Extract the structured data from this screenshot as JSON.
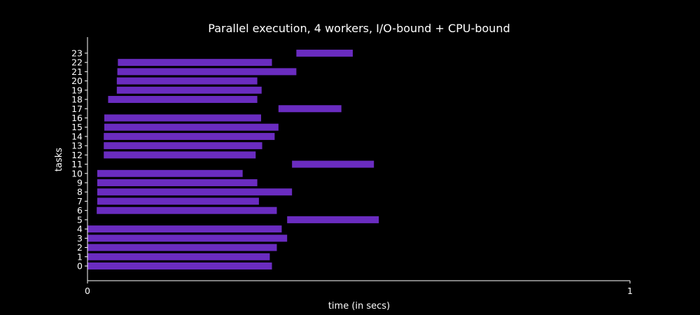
{
  "chart_data": {
    "type": "bar",
    "orientation": "horizontal",
    "title": "Parallel execution, 4 workers, I/O-bound + CPU-bound",
    "xlabel": "time (in secs)",
    "ylabel": "tasks",
    "xlim": [
      0,
      1
    ],
    "x_ticks": [
      "0",
      "1"
    ],
    "categories": [
      "0",
      "1",
      "2",
      "3",
      "4",
      "5",
      "6",
      "7",
      "8",
      "9",
      "10",
      "11",
      "12",
      "13",
      "14",
      "15",
      "16",
      "17",
      "18",
      "19",
      "20",
      "21",
      "22",
      "23"
    ],
    "bars": [
      {
        "task": "0",
        "start": 0.0,
        "end": 0.34
      },
      {
        "task": "1",
        "start": 0.0,
        "end": 0.336
      },
      {
        "task": "2",
        "start": 0.0,
        "end": 0.349
      },
      {
        "task": "3",
        "start": 0.0,
        "end": 0.368
      },
      {
        "task": "4",
        "start": 0.0,
        "end": 0.358
      },
      {
        "task": "5",
        "start": 0.368,
        "end": 0.537
      },
      {
        "task": "6",
        "start": 0.017,
        "end": 0.349
      },
      {
        "task": "7",
        "start": 0.018,
        "end": 0.316
      },
      {
        "task": "8",
        "start": 0.018,
        "end": 0.377
      },
      {
        "task": "9",
        "start": 0.018,
        "end": 0.313
      },
      {
        "task": "10",
        "start": 0.018,
        "end": 0.286
      },
      {
        "task": "11",
        "start": 0.377,
        "end": 0.528
      },
      {
        "task": "12",
        "start": 0.03,
        "end": 0.31
      },
      {
        "task": "13",
        "start": 0.03,
        "end": 0.322
      },
      {
        "task": "14",
        "start": 0.03,
        "end": 0.345
      },
      {
        "task": "15",
        "start": 0.031,
        "end": 0.352
      },
      {
        "task": "16",
        "start": 0.031,
        "end": 0.32
      },
      {
        "task": "17",
        "start": 0.352,
        "end": 0.468
      },
      {
        "task": "18",
        "start": 0.038,
        "end": 0.313
      },
      {
        "task": "19",
        "start": 0.054,
        "end": 0.321
      },
      {
        "task": "20",
        "start": 0.054,
        "end": 0.313
      },
      {
        "task": "21",
        "start": 0.055,
        "end": 0.385
      },
      {
        "task": "22",
        "start": 0.056,
        "end": 0.34
      },
      {
        "task": "23",
        "start": 0.385,
        "end": 0.489
      }
    ],
    "bar_color": "#6a2cc0",
    "grid": false,
    "legend": "none",
    "background": "#000000",
    "foreground": "#ffffff"
  }
}
